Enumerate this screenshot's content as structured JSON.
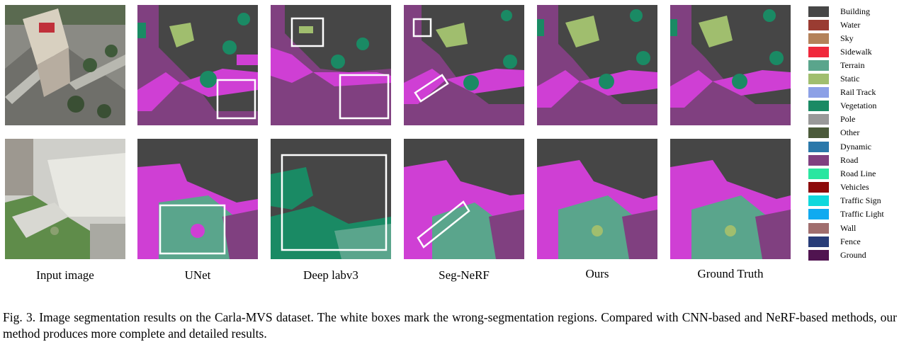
{
  "figure": {
    "columns": [
      {
        "key": "input",
        "label": "Input image"
      },
      {
        "key": "unet",
        "label": "UNet"
      },
      {
        "key": "deeplab",
        "label": "Deep labv3"
      },
      {
        "key": "segnerf",
        "label": "Seg-NeRF"
      },
      {
        "key": "ours",
        "label": "Ours"
      },
      {
        "key": "gt",
        "label": "Ground Truth"
      }
    ],
    "legend": [
      {
        "label": "Building",
        "color": "#464646"
      },
      {
        "label": "Water",
        "color": "#9a3c32"
      },
      {
        "label": "Sky",
        "color": "#b4825a"
      },
      {
        "label": "Sidewalk",
        "color": "#f0283c"
      },
      {
        "label": "Terrain",
        "color": "#5aa58c"
      },
      {
        "label": "Static",
        "color": "#a0be6e"
      },
      {
        "label": "Rail Track",
        "color": "#8ca0e6"
      },
      {
        "label": "Vegetation",
        "color": "#1a8a64"
      },
      {
        "label": "Pole",
        "color": "#999999"
      },
      {
        "label": "Other",
        "color": "#4b5a3a"
      },
      {
        "label": "Dynamic",
        "color": "#2a78aa"
      },
      {
        "label": "Road",
        "color": "#804080"
      },
      {
        "label": "Road Line",
        "color": "#2ae6a0"
      },
      {
        "label": "Vehicles",
        "color": "#8c0a0a"
      },
      {
        "label": "Traffic Sign",
        "color": "#10d8dc"
      },
      {
        "label": "Traffic Light",
        "color": "#10aaf0"
      },
      {
        "label": "Wall",
        "color": "#a06e6e"
      },
      {
        "label": "Fence",
        "color": "#283c78"
      },
      {
        "label": "Ground",
        "color": "#501450"
      }
    ],
    "caption": "Fig. 3.  Image segmentation results on the Carla-MVS dataset. The white boxes mark the wrong-segmentation regions. Compared with CNN-based and NeRF-based methods, our method produces more complete and detailed results."
  }
}
